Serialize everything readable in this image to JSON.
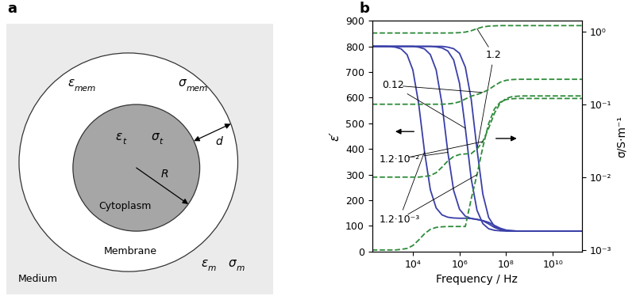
{
  "diagram": {
    "panel_label": "a",
    "symbols": {
      "membrane": [
        {
          "symbol": "ε",
          "subscript": "mem"
        },
        {
          "symbol": "σ",
          "subscript": "mem"
        }
      ],
      "cytoplasm": [
        {
          "symbol": "ε",
          "subscript": "t"
        },
        {
          "symbol": "σ",
          "subscript": "t"
        }
      ],
      "medium": [
        {
          "symbol": "ε",
          "subscript": "m"
        },
        {
          "symbol": "σ",
          "subscript": "m"
        }
      ]
    },
    "texts": {
      "cytoplasm": "Cytoplasm",
      "membrane": "Membrane",
      "medium": "Medium",
      "radius": "R",
      "thickness": "d"
    }
  },
  "chart_data": {
    "type": "line",
    "panel_label": "b",
    "x_label": "Frequency / Hz",
    "y_label": "ε′",
    "y2_label": "σ/S·m⁻¹",
    "log": [
      "x",
      "y2"
    ],
    "xlim": [
      178,
      177827941004
    ],
    "xticks": [
      {
        "value": 10000,
        "label": "10⁴"
      },
      {
        "value": 1000000,
        "label": "10⁶"
      },
      {
        "value": 100000000,
        "label": "10⁸"
      },
      {
        "value": 10000000000,
        "label": "10¹⁰"
      }
    ],
    "ylim": [
      0,
      900
    ],
    "yticks": [
      0,
      100,
      200,
      300,
      400,
      500,
      600,
      700,
      800,
      900
    ],
    "y2lim": [
      0.00095,
      1.4
    ],
    "y2ticks": [
      {
        "value": 0.001,
        "label": "10⁻³"
      },
      {
        "value": 0.01,
        "label": "10⁻²"
      },
      {
        "value": 0.1,
        "label": "10⁻¹"
      },
      {
        "value": 1,
        "label": "10⁰"
      }
    ],
    "x": [
      178,
      316,
      562,
      1000,
      1778,
      3162,
      5623,
      10000,
      17783,
      31623,
      56234,
      100000,
      177828,
      316228,
      562341,
      1000000,
      1778279,
      3162278,
      5623413,
      10000000,
      17782794,
      31622777,
      56234133,
      100000000,
      177827941,
      316227766,
      562341325,
      1000000000,
      1778279410,
      3162277660,
      5623413252,
      10000000000,
      17782794100,
      31622776602,
      56234132519,
      100000000000,
      177827941004
    ],
    "series": [
      {
        "name": "1.2",
        "color": "#3a3fa8",
        "line_style": "solid",
        "axis": "y",
        "values": [
          800,
          800,
          800,
          800,
          800,
          800,
          800,
          800,
          800,
          800,
          800,
          800,
          800,
          797,
          791,
          773,
          719,
          595,
          399,
          224,
          133,
          98,
          86,
          82,
          81,
          80,
          80,
          80,
          80,
          80,
          80,
          80,
          80,
          80,
          80,
          80,
          80
        ]
      },
      {
        "name": "0.12",
        "color": "#3a3fa8",
        "line_style": "solid",
        "axis": "y",
        "values": [
          800,
          800,
          800,
          800,
          800,
          800,
          800,
          800,
          800,
          800,
          800,
          798,
          794,
          782,
          747,
          656,
          481,
          285,
          161,
          109,
          89,
          83,
          81,
          80,
          80,
          80,
          80,
          80,
          80,
          80,
          80,
          80,
          80,
          80,
          80,
          80,
          80
        ]
      },
      {
        "name": "1.2·10⁻²",
        "color": "#3a3fa8",
        "line_style": "solid",
        "axis": "y",
        "values": [
          800,
          800,
          800,
          800,
          800,
          800,
          800,
          800,
          797,
          790,
          768,
          708,
          575,
          387,
          238,
          165,
          138,
          129,
          125,
          121,
          114,
          102,
          91,
          84,
          81,
          80,
          80,
          80,
          80,
          80,
          80,
          80,
          80,
          80,
          80,
          80,
          80
        ]
      },
      {
        "name": "1.2·10⁻³",
        "color": "#3a3fa8",
        "line_style": "solid",
        "axis": "y",
        "values": [
          800,
          800,
          800,
          799,
          797,
          790,
          768,
          708,
          576,
          389,
          241,
          170,
          143,
          134,
          131,
          130,
          130,
          129,
          126,
          120,
          108,
          94,
          86,
          82,
          81,
          80,
          80,
          80,
          80,
          80,
          80,
          80,
          80,
          80,
          80,
          80,
          80
        ]
      },
      {
        "name": "1.2",
        "color": "#2e8b3a",
        "line_style": "dashed",
        "axis": "y2",
        "values": [
          0.95,
          0.95,
          0.95,
          0.95,
          0.95,
          0.95,
          0.95,
          0.95,
          0.95,
          0.95,
          0.95,
          0.95,
          0.95,
          0.95,
          0.953,
          0.96,
          0.978,
          1.02,
          1.09,
          1.15,
          1.18,
          1.19,
          1.2,
          1.2,
          1.2,
          1.2,
          1.2,
          1.2,
          1.2,
          1.2,
          1.2,
          1.2,
          1.2,
          1.2,
          1.2,
          1.2,
          1.2
        ]
      },
      {
        "name": "0.12",
        "color": "#2e8b3a",
        "line_style": "dashed",
        "axis": "y2",
        "values": [
          0.1,
          0.1,
          0.1,
          0.1,
          0.1,
          0.1,
          0.1,
          0.1,
          0.1,
          0.1,
          0.1,
          0.1,
          0.1,
          0.101,
          0.103,
          0.108,
          0.118,
          0.129,
          0.136,
          0.145,
          0.159,
          0.18,
          0.201,
          0.213,
          0.218,
          0.22,
          0.22,
          0.22,
          0.22,
          0.22,
          0.22,
          0.22,
          0.22,
          0.22,
          0.22,
          0.22,
          0.22
        ]
      },
      {
        "name": "1.2·10⁻²",
        "color": "#2e8b3a",
        "line_style": "dashed",
        "axis": "y2",
        "values": [
          0.01,
          0.01,
          0.01,
          0.01,
          0.01,
          0.01,
          0.01,
          0.01,
          0.01,
          0.0102,
          0.0105,
          0.0115,
          0.0137,
          0.0167,
          0.0192,
          0.0204,
          0.0208,
          0.021,
          0.0243,
          0.0308,
          0.047,
          0.0755,
          0.104,
          0.12,
          0.127,
          0.129,
          0.13,
          0.13,
          0.13,
          0.13,
          0.13,
          0.13,
          0.13,
          0.13,
          0.13,
          0.13,
          0.13
        ]
      },
      {
        "name": "1.2·10⁻³",
        "color": "#2e8b3a",
        "line_style": "dashed",
        "axis": "y2",
        "values": [
          0.001,
          0.001,
          0.001,
          0.001,
          0.001,
          0.00102,
          0.00105,
          0.00115,
          0.00137,
          0.00167,
          0.00192,
          0.00204,
          0.00208,
          0.0021,
          0.0021,
          0.0021,
          0.0021,
          0.005,
          0.0108,
          0.0257,
          0.0543,
          0.0864,
          0.107,
          0.116,
          0.119,
          0.12,
          0.12,
          0.12,
          0.12,
          0.12,
          0.12,
          0.12,
          0.12,
          0.12,
          0.12,
          0.12,
          0.12
        ]
      }
    ]
  }
}
